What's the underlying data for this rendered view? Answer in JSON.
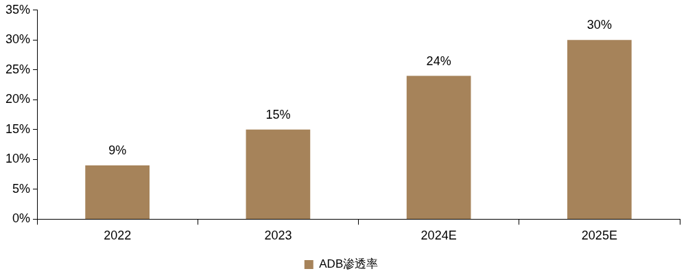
{
  "chart_data": {
    "type": "bar",
    "categories": [
      "2022",
      "2023",
      "2024E",
      "2025E"
    ],
    "series": [
      {
        "name": "ADB渗透率",
        "color": "#a6835a",
        "values": [
          9,
          15,
          24,
          30
        ],
        "value_labels": [
          "9%",
          "15%",
          "24%",
          "30%"
        ]
      }
    ],
    "ylim": [
      0,
      35
    ],
    "yticks": [
      {
        "value": 0,
        "label": "0%"
      },
      {
        "value": 5,
        "label": "5%"
      },
      {
        "value": 10,
        "label": "10%"
      },
      {
        "value": 15,
        "label": "15%"
      },
      {
        "value": 20,
        "label": "20%"
      },
      {
        "value": 25,
        "label": "25%"
      },
      {
        "value": 30,
        "label": "30%"
      },
      {
        "value": 35,
        "label": "35%"
      }
    ],
    "grid": false,
    "legend": "bottom"
  }
}
